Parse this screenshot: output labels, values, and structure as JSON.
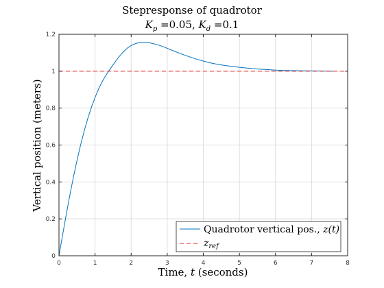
{
  "chart_data": {
    "type": "line",
    "title": [
      "Stepresponse of quadrotor",
      "K_p =0.05, K_d =0.1"
    ],
    "title_line1": "Stepresponse of quadrotor",
    "title_line2": {
      "kp_symbol": "K",
      "kp_sub": "p",
      "kp_value": " =0.05, ",
      "kd_symbol": "K",
      "kd_sub": "d",
      "kd_value": " =0.1"
    },
    "xlabel": {
      "prefix": "Time, ",
      "var": "t",
      "suffix": " (seconds)"
    },
    "ylabel": "Vertical position (meters)",
    "xlim": [
      0,
      8
    ],
    "ylim": [
      0,
      1.2
    ],
    "xticks": [
      "0",
      "1",
      "2",
      "3",
      "4",
      "5",
      "6",
      "7",
      "8"
    ],
    "yticks": [
      "0",
      "0.2",
      "0.4",
      "0.6",
      "0.8",
      "1",
      "1.2"
    ],
    "grid": true,
    "legend_position": "bottom-right",
    "series": [
      {
        "name": "Quadrotor vertical pos., z(t)",
        "legend_prefix": "Quadrotor vertical pos., ",
        "legend_math": "z(t)",
        "color": "#0072BD",
        "style": "solid",
        "x": [
          0,
          0.1,
          0.2,
          0.3,
          0.4,
          0.5,
          0.6,
          0.7,
          0.8,
          0.9,
          1.0,
          1.1,
          1.2,
          1.3,
          1.4,
          1.5,
          1.6,
          1.7,
          1.8,
          1.9,
          2.0,
          2.1,
          2.2,
          2.3,
          2.4,
          2.5,
          2.6,
          2.7,
          2.8,
          2.9,
          3.0,
          3.2,
          3.4,
          3.6,
          3.8,
          4.0,
          4.2,
          4.4,
          4.6,
          4.8,
          5.0,
          5.25,
          5.5,
          5.75,
          6.0,
          6.25,
          6.5,
          6.75,
          7.0,
          7.25,
          7.5,
          7.6
        ],
        "y": [
          0,
          0.112,
          0.222,
          0.327,
          0.426,
          0.517,
          0.601,
          0.677,
          0.745,
          0.805,
          0.858,
          0.905,
          0.944,
          0.978,
          1.007,
          1.035,
          1.062,
          1.087,
          1.108,
          1.126,
          1.139,
          1.148,
          1.154,
          1.156,
          1.156,
          1.154,
          1.15,
          1.145,
          1.139,
          1.132,
          1.124,
          1.108,
          1.093,
          1.079,
          1.066,
          1.055,
          1.045,
          1.037,
          1.031,
          1.026,
          1.021,
          1.016,
          1.012,
          1.009,
          1.006,
          1.004,
          1.003,
          1.002,
          1.0015,
          1.001,
          1.0005,
          1.0
        ]
      },
      {
        "name": "z_ref",
        "legend_symbol": "z",
        "legend_sub": "ref",
        "color": "#EB2C2C",
        "style": "dashed",
        "x": [
          0,
          8
        ],
        "y": [
          1,
          1
        ]
      }
    ]
  }
}
